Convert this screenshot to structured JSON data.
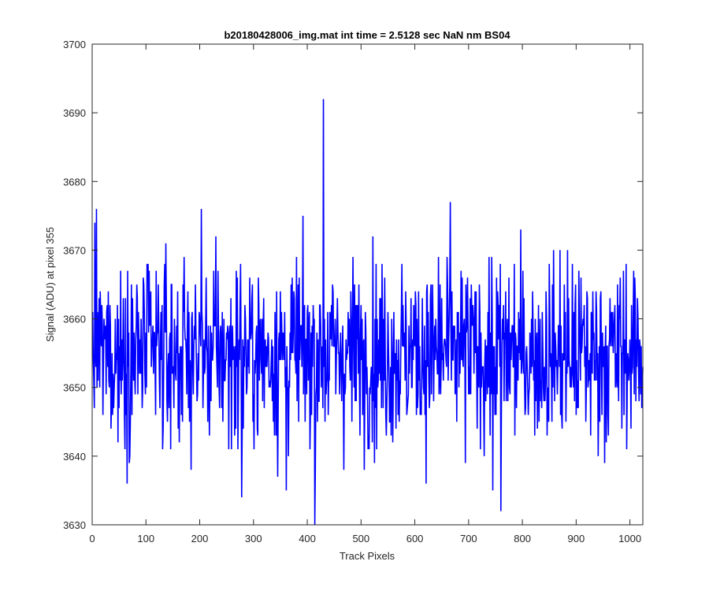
{
  "chart_data": {
    "type": "line",
    "title": "b20180428006_img.mat int time = 2.5128 sec  NaN nm BS04",
    "xlabel": "Track Pixels",
    "ylabel": "Signal (ADU) at pixel 355",
    "xlim": [
      0,
      1024
    ],
    "ylim": [
      3630,
      3700
    ],
    "xticks": [
      0,
      100,
      200,
      300,
      400,
      500,
      600,
      700,
      800,
      900,
      1000
    ],
    "yticks": [
      3630,
      3640,
      3650,
      3660,
      3670,
      3680,
      3690,
      3700
    ],
    "grid": false,
    "box": true,
    "series": [
      {
        "color": "#0000ff",
        "x_start": 1,
        "x_step": 1,
        "count": 1024,
        "mean": 3655,
        "spread": 8.5,
        "notable_points": [
          {
            "x": 414,
            "y": 3630
          },
          {
            "x": 430,
            "y": 3692
          },
          {
            "x": 666,
            "y": 3677
          },
          {
            "x": 8,
            "y": 3676
          },
          {
            "x": 203,
            "y": 3676
          },
          {
            "x": 278,
            "y": 3634
          },
          {
            "x": 361,
            "y": 3635
          },
          {
            "x": 760,
            "y": 3632
          },
          {
            "x": 745,
            "y": 3635
          }
        ]
      }
    ]
  }
}
